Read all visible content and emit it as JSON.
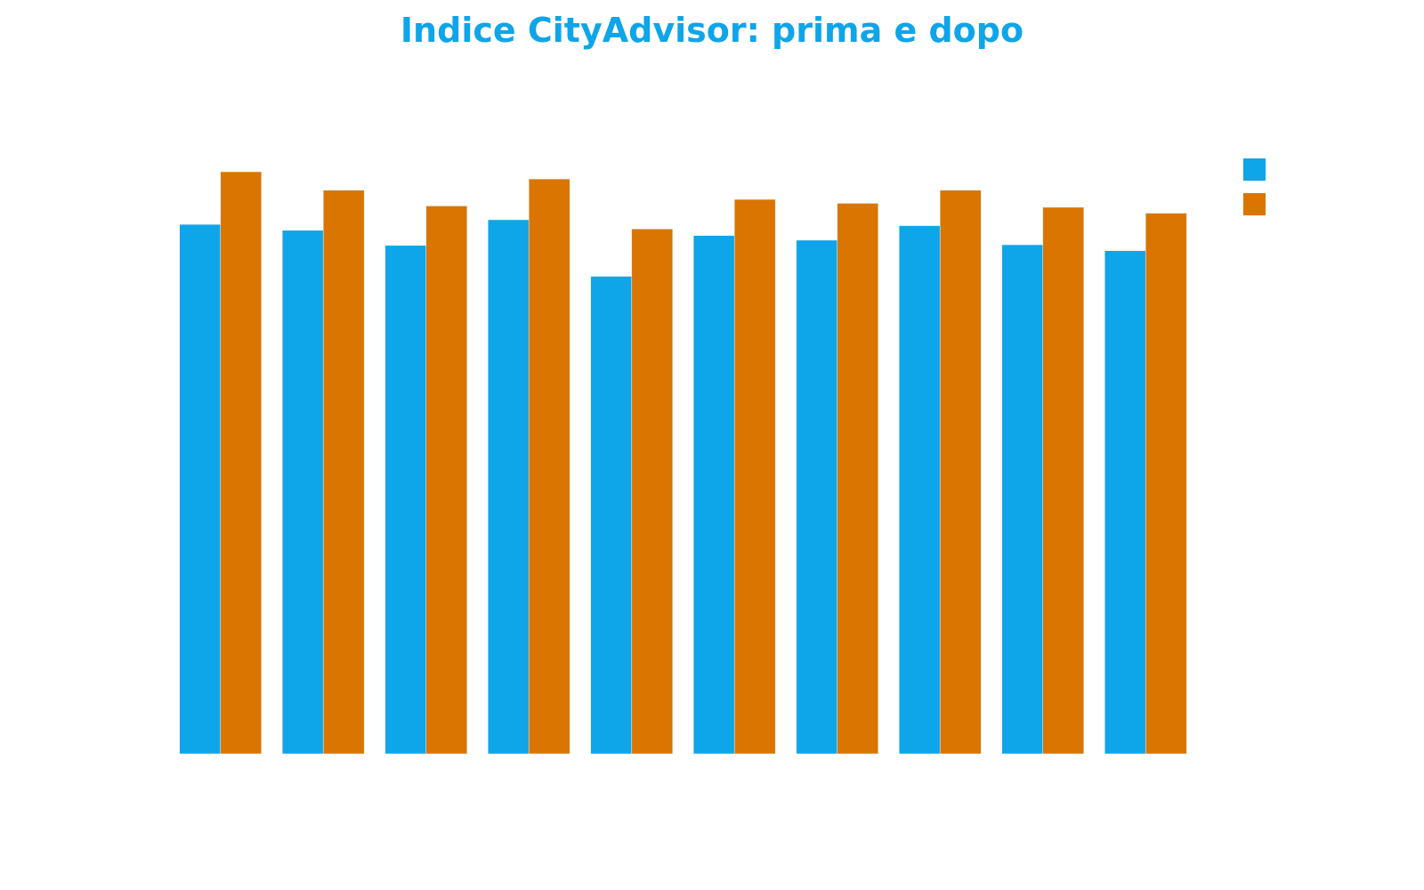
{
  "chart_data": {
    "type": "bar",
    "title": "Indice CityAdvisor: prima e dopo",
    "categories": [
      "",
      "",
      "",
      "",
      "",
      "",
      "",
      "",
      "",
      ""
    ],
    "series": [
      {
        "color": "#0ea5e9",
        "values": [
          80.5,
          79.6,
          77.3,
          81.2,
          72.6,
          78.8,
          78.1,
          80.3,
          77.4,
          76.5
        ]
      },
      {
        "color": "#d97500",
        "values": [
          88.5,
          85.7,
          83.3,
          87.4,
          79.8,
          84.3,
          83.7,
          85.7,
          83.1,
          82.2
        ]
      }
    ],
    "ylim": [
      0,
      100
    ],
    "grid": false,
    "legend": "top-right",
    "xlabel": "",
    "ylabel": ""
  }
}
